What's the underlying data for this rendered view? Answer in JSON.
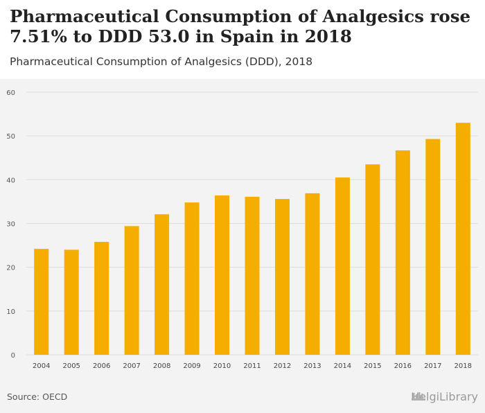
{
  "header": {
    "title": "Pharmaceutical Consumption of Analgesics rose 7.51% to DDD 53.0 in Spain in 2018",
    "subtitle": "Pharmaceutical Consumption of Analgesics (DDD), 2018"
  },
  "footer": {
    "source": "Source: OECD",
    "brand": "HelgiLibrary"
  },
  "colors": {
    "bar": "#f5ad00",
    "grid": "#dddddd",
    "background": "#f3f3f3"
  },
  "chart_data": {
    "type": "bar",
    "categories": [
      "2004",
      "2005",
      "2006",
      "2007",
      "2008",
      "2009",
      "2010",
      "2011",
      "2012",
      "2013",
      "2014",
      "2015",
      "2016",
      "2017",
      "2018"
    ],
    "values": [
      24.2,
      24.0,
      25.8,
      29.4,
      32.1,
      34.8,
      36.4,
      36.1,
      35.6,
      36.9,
      40.5,
      43.5,
      46.7,
      49.3,
      53.0
    ],
    "yticks": [
      0,
      10,
      20,
      30,
      40,
      50,
      60
    ],
    "ylim": [
      0,
      60
    ],
    "grid": true,
    "xlabel": "",
    "ylabel": ""
  }
}
